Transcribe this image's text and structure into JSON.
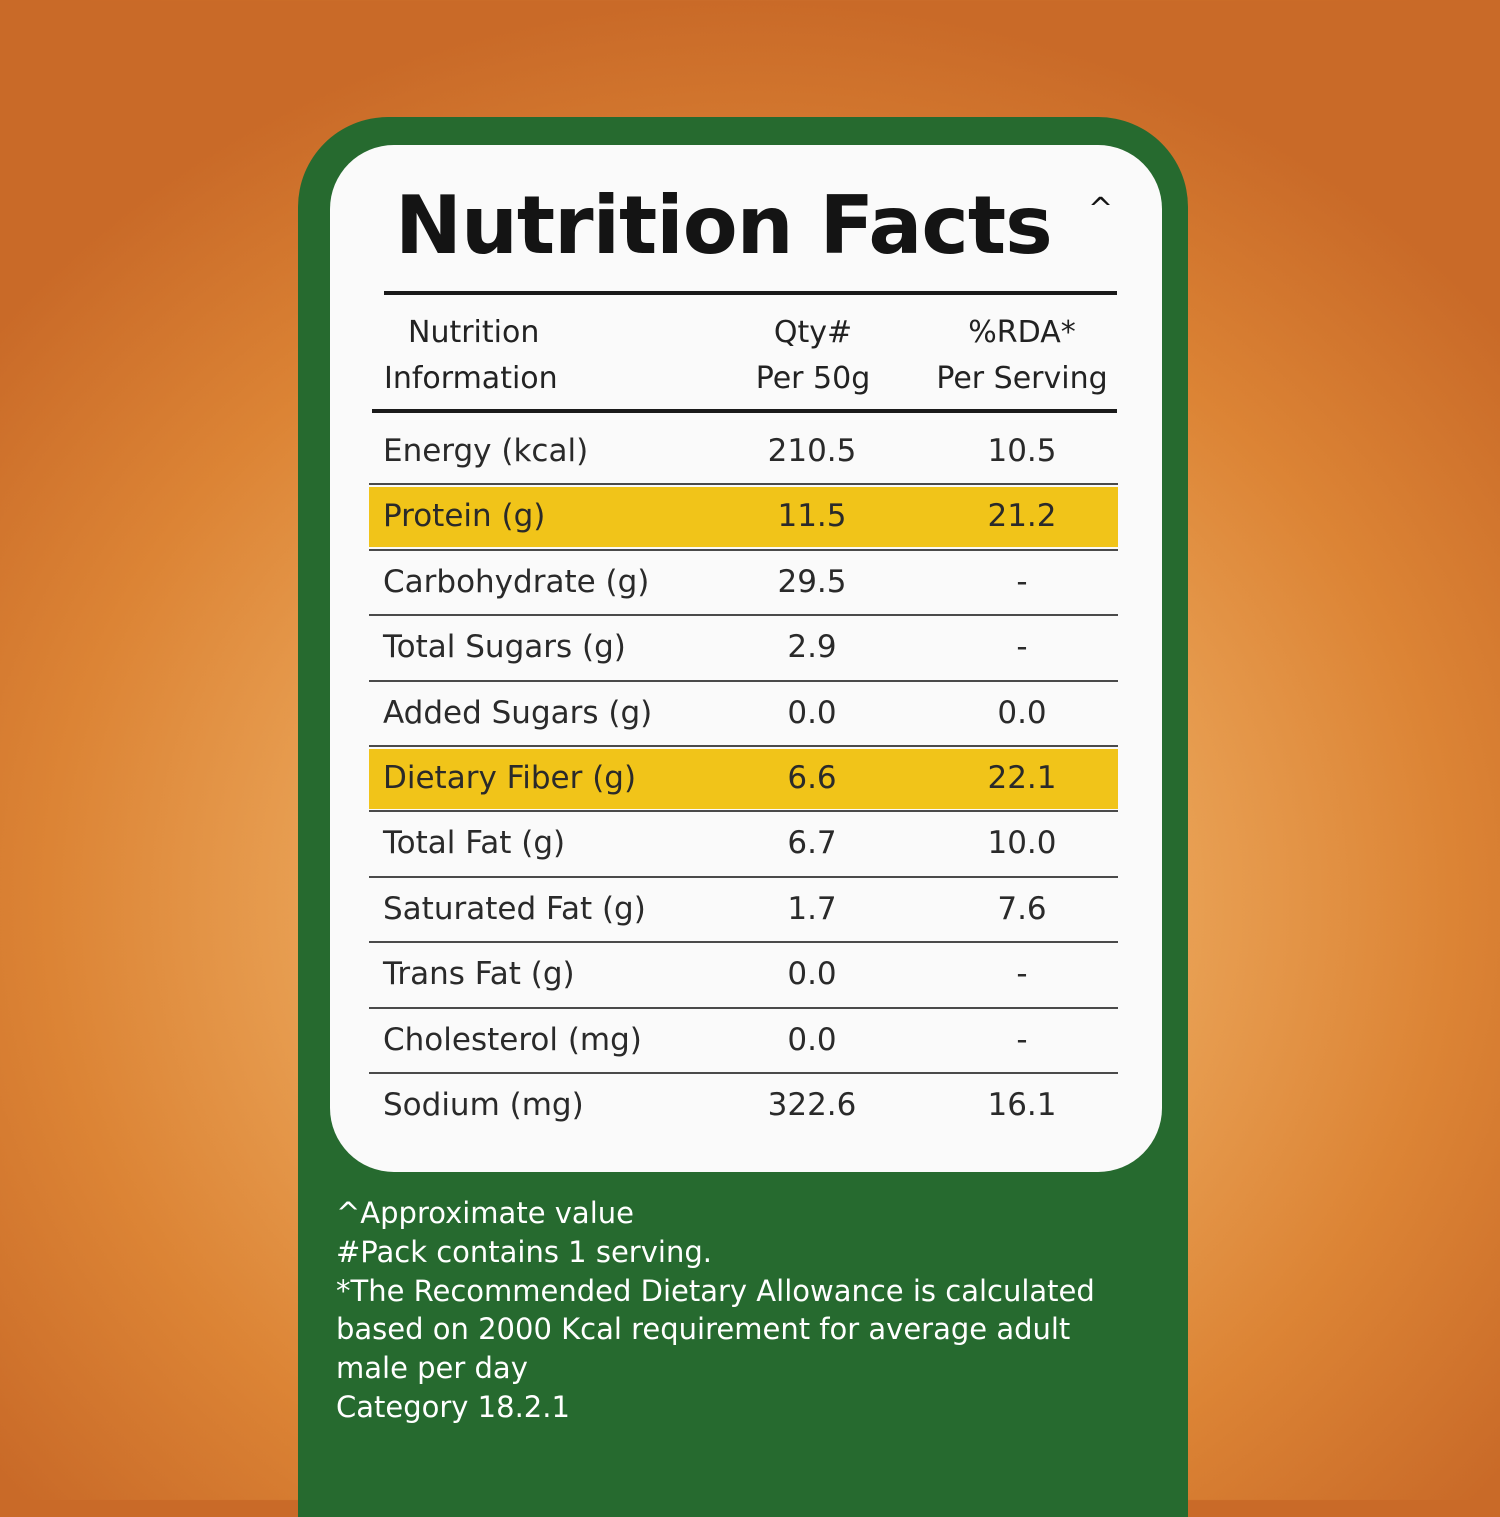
{
  "title": "Nutrition Facts",
  "title_mark": "^",
  "header": {
    "name_line1": "Nutrition",
    "name_line2": "Information",
    "qty_line1": "Qty#",
    "qty_line2": "Per 50g",
    "rda_line1": "%RDA*",
    "rda_line2": "Per Serving"
  },
  "rows": [
    {
      "name": "Energy (kcal)",
      "qty": "210.5",
      "rda": "10.5",
      "highlight": false
    },
    {
      "name": "Protein (g)",
      "qty": "11.5",
      "rda": "21.2",
      "highlight": true
    },
    {
      "name": "Carbohydrate (g)",
      "qty": "29.5",
      "rda": "-",
      "highlight": false
    },
    {
      "name": "Total Sugars (g)",
      "qty": "2.9",
      "rda": "-",
      "highlight": false
    },
    {
      "name": "Added Sugars (g)",
      "qty": "0.0",
      "rda": "0.0",
      "highlight": false
    },
    {
      "name": "Dietary Fiber (g)",
      "qty": "6.6",
      "rda": "22.1",
      "highlight": true
    },
    {
      "name": "Total Fat (g)",
      "qty": "6.7",
      "rda": "10.0",
      "highlight": false
    },
    {
      "name": "Saturated Fat (g)",
      "qty": "1.7",
      "rda": "7.6",
      "highlight": false
    },
    {
      "name": "Trans Fat (g)",
      "qty": "0.0",
      "rda": "-",
      "highlight": false
    },
    {
      "name": "Cholesterol (mg)",
      "qty": "0.0",
      "rda": "-",
      "highlight": false
    },
    {
      "name": "Sodium (mg)",
      "qty": "322.6",
      "rda": "16.1",
      "highlight": false
    }
  ],
  "notes": [
    "^Approximate value",
    "#Pack contains 1 serving.",
    "*The Recommended Dietary Allowance is calculated",
    "based on 2000 Kcal requirement for average adult",
    "male per day",
    "Category 18.2.1"
  ],
  "colors": {
    "panel": "#266a2f",
    "card": "#fafafa",
    "highlight": "#f1c419",
    "background": "#e39a4a"
  }
}
